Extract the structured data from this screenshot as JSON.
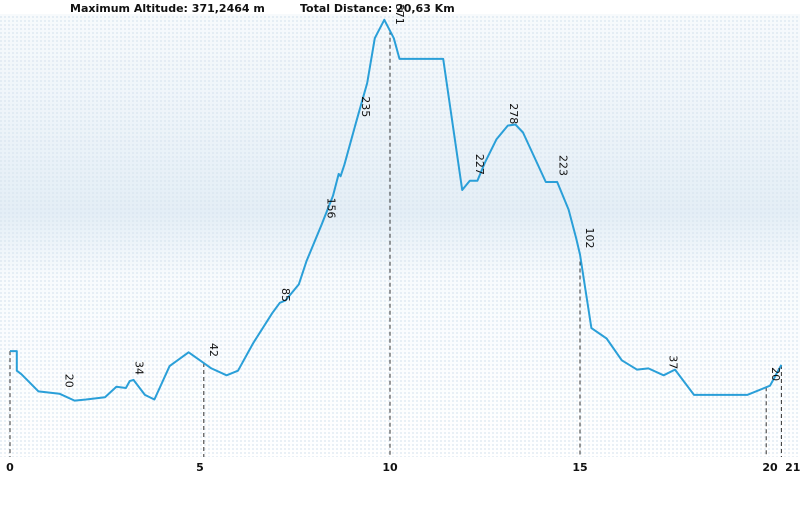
{
  "header": {
    "max_altitude": "Maximum Altitude: 371,2464 m",
    "total_distance": "Total Distance: 20,63 Km"
  },
  "chart_data": {
    "type": "area",
    "xlabel": "",
    "ylabel": "",
    "xlim": [
      0,
      21.2
    ],
    "ylim": [
      0,
      385
    ],
    "x_ticks": [
      {
        "value": 0,
        "label": "0"
      },
      {
        "value": 5,
        "label": "5"
      },
      {
        "value": 10,
        "label": "10"
      },
      {
        "value": 15,
        "label": "15"
      },
      {
        "value": 20,
        "label": "20"
      },
      {
        "value": 20.6,
        "label": "21"
      }
    ],
    "series": [
      {
        "x": [
          0,
          0.18,
          0.18,
          0.3,
          0.75,
          1.3,
          1.7,
          2.0,
          2.5,
          2.8,
          3.05,
          3.15,
          3.25,
          3.55,
          3.8,
          4.2,
          4.7,
          5.3,
          5.7,
          6.0,
          6.4,
          6.9,
          7.1,
          7.25,
          7.6,
          7.8,
          8.2,
          8.5,
          8.65,
          8.7,
          8.8,
          9.1,
          9.4,
          9.6,
          9.85,
          10.1,
          10.25,
          10.6,
          11.4,
          11.9,
          12.1,
          12.3,
          12.5,
          12.8,
          13.1,
          13.3,
          13.5,
          14.1,
          14.4,
          14.7,
          14.9,
          15.0,
          15.3,
          15.7,
          16.1,
          16.5,
          16.8,
          17.2,
          17.5,
          18.0,
          18.5,
          19.0,
          19.4,
          20.0,
          20.3
        ],
        "y": [
          92,
          92,
          75,
          72,
          57,
          55,
          49,
          50,
          52,
          61,
          60,
          66,
          67,
          54,
          50,
          79,
          91,
          77,
          71,
          75,
          99,
          125,
          134,
          136,
          150,
          170,
          202,
          227,
          246,
          244,
          254,
          290,
          325,
          364,
          380,
          364,
          346,
          346,
          346,
          232,
          240,
          240,
          256,
          276,
          288,
          289,
          282,
          239,
          239,
          215,
          190,
          176,
          112,
          103,
          84,
          76,
          77,
          71,
          76,
          54,
          54,
          54,
          54,
          62,
          80
        ]
      }
    ],
    "annotations": [
      {
        "x": 0,
        "label": ""
      },
      {
        "x": 1.3,
        "label": "20"
      },
      {
        "x": 3.15,
        "label": "34"
      },
      {
        "x": 5.1,
        "label": "42"
      },
      {
        "x": 7.0,
        "label": "85"
      },
      {
        "x": 8.2,
        "label": "156"
      },
      {
        "x": 9.1,
        "label": "235"
      },
      {
        "x": 10.0,
        "label": "371"
      },
      {
        "x": 12.1,
        "label": "227"
      },
      {
        "x": 13.0,
        "label": "278"
      },
      {
        "x": 14.3,
        "label": "223"
      },
      {
        "x": 15.0,
        "label": "102"
      },
      {
        "x": 17.2,
        "label": "37"
      },
      {
        "x": 19.9,
        "label": "20"
      },
      {
        "x": 20.3,
        "label": ""
      }
    ],
    "guides": [
      0,
      5.1,
      10.0,
      15.0,
      19.9,
      20.3
    ],
    "line_color": "#2a9fd8",
    "grid": false,
    "legend": "none"
  }
}
